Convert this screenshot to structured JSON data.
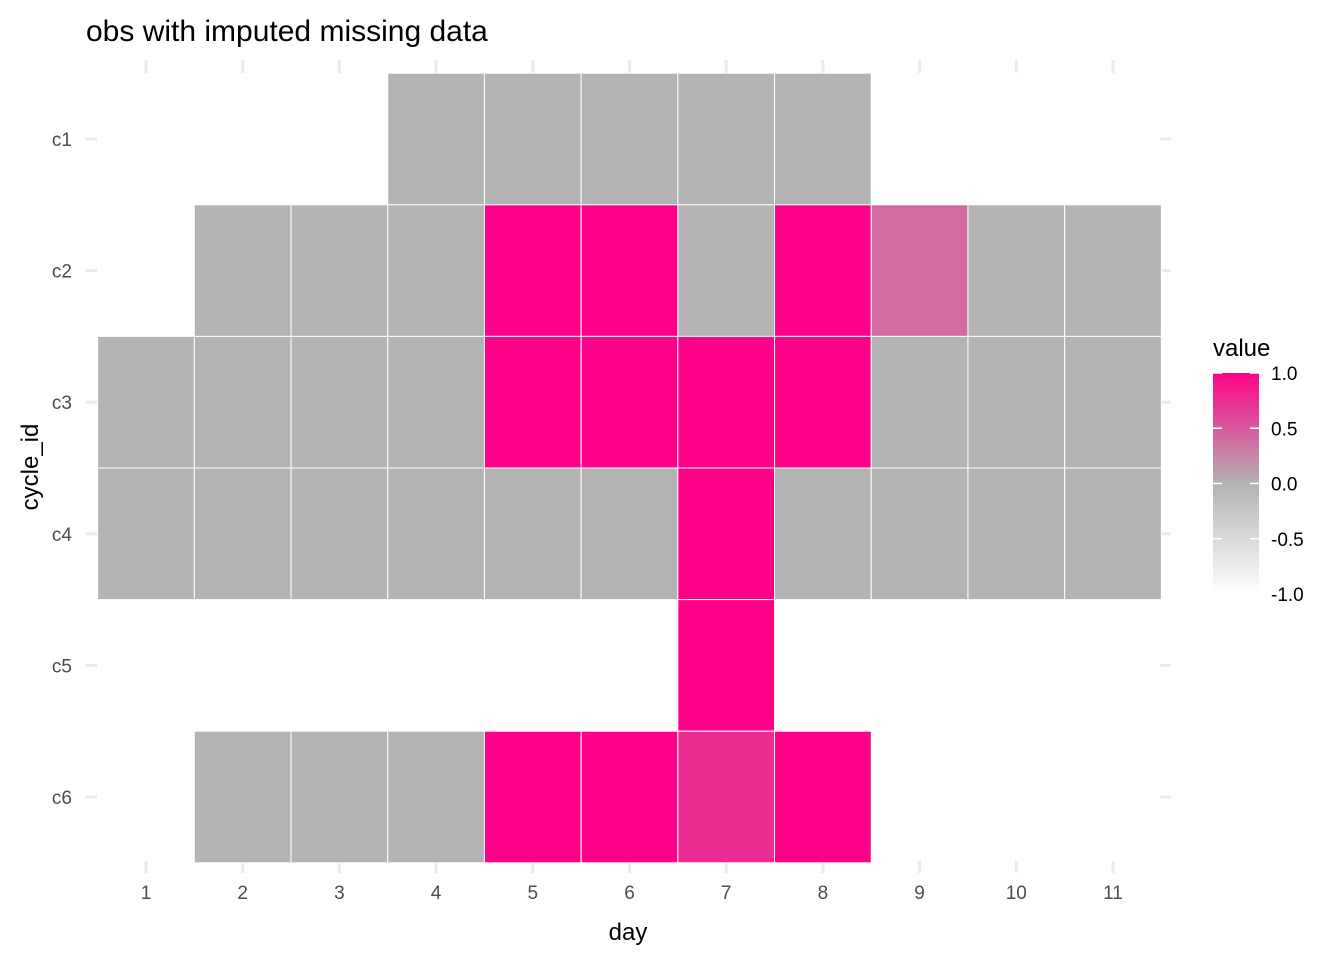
{
  "chart_data": {
    "type": "heatmap",
    "title": "obs with imputed missing data",
    "xlabel": "day",
    "ylabel": "cycle_id",
    "x_categories": [
      "1",
      "2",
      "3",
      "4",
      "5",
      "6",
      "7",
      "8",
      "9",
      "10",
      "11"
    ],
    "y_categories": [
      "c1",
      "c2",
      "c3",
      "c4",
      "c5",
      "c6"
    ],
    "grid": false,
    "cells": [
      {
        "y": "c1",
        "x": 4,
        "value": 0
      },
      {
        "y": "c1",
        "x": 5,
        "value": 0
      },
      {
        "y": "c1",
        "x": 6,
        "value": 0
      },
      {
        "y": "c1",
        "x": 7,
        "value": 0
      },
      {
        "y": "c1",
        "x": 8,
        "value": 0
      },
      {
        "y": "c2",
        "x": 2,
        "value": 0
      },
      {
        "y": "c2",
        "x": 3,
        "value": 0
      },
      {
        "y": "c2",
        "x": 4,
        "value": 0
      },
      {
        "y": "c2",
        "x": 5,
        "value": 1
      },
      {
        "y": "c2",
        "x": 6,
        "value": 1
      },
      {
        "y": "c2",
        "x": 7,
        "value": 0
      },
      {
        "y": "c2",
        "x": 8,
        "value": 1
      },
      {
        "y": "c2",
        "x": 9,
        "value": 0.4
      },
      {
        "y": "c2",
        "x": 10,
        "value": 0
      },
      {
        "y": "c2",
        "x": 11,
        "value": 0
      },
      {
        "y": "c3",
        "x": 1,
        "value": 0
      },
      {
        "y": "c3",
        "x": 2,
        "value": 0
      },
      {
        "y": "c3",
        "x": 3,
        "value": 0
      },
      {
        "y": "c3",
        "x": 4,
        "value": 0
      },
      {
        "y": "c3",
        "x": 5,
        "value": 1
      },
      {
        "y": "c3",
        "x": 6,
        "value": 1
      },
      {
        "y": "c3",
        "x": 7,
        "value": 1
      },
      {
        "y": "c3",
        "x": 8,
        "value": 1
      },
      {
        "y": "c3",
        "x": 9,
        "value": 0
      },
      {
        "y": "c3",
        "x": 10,
        "value": 0
      },
      {
        "y": "c3",
        "x": 11,
        "value": 0
      },
      {
        "y": "c4",
        "x": 1,
        "value": 0
      },
      {
        "y": "c4",
        "x": 2,
        "value": 0
      },
      {
        "y": "c4",
        "x": 3,
        "value": 0
      },
      {
        "y": "c4",
        "x": 4,
        "value": 0
      },
      {
        "y": "c4",
        "x": 5,
        "value": 0
      },
      {
        "y": "c4",
        "x": 6,
        "value": 0
      },
      {
        "y": "c4",
        "x": 7,
        "value": 1
      },
      {
        "y": "c4",
        "x": 8,
        "value": 0
      },
      {
        "y": "c4",
        "x": 9,
        "value": 0
      },
      {
        "y": "c4",
        "x": 10,
        "value": 0
      },
      {
        "y": "c4",
        "x": 11,
        "value": 0
      },
      {
        "y": "c5",
        "x": 7,
        "value": 1
      },
      {
        "y": "c6",
        "x": 2,
        "value": 0
      },
      {
        "y": "c6",
        "x": 3,
        "value": 0
      },
      {
        "y": "c6",
        "x": 4,
        "value": 0
      },
      {
        "y": "c6",
        "x": 5,
        "value": 1
      },
      {
        "y": "c6",
        "x": 6,
        "value": 1
      },
      {
        "y": "c6",
        "x": 7,
        "value": 0.75
      },
      {
        "y": "c6",
        "x": 8,
        "value": 1
      }
    ],
    "legend": {
      "title": "value",
      "position": "right",
      "breaks": [
        1.0,
        0.5,
        0.0,
        -0.5,
        -1.0
      ],
      "labels": [
        "1.0",
        "0.5",
        "0.0",
        "-0.5",
        "-1.0"
      ],
      "range": [
        -1,
        1
      ],
      "color_low": "#ffffff",
      "color_mid": "#b3b3b3",
      "color_high": "#ff0088"
    }
  }
}
